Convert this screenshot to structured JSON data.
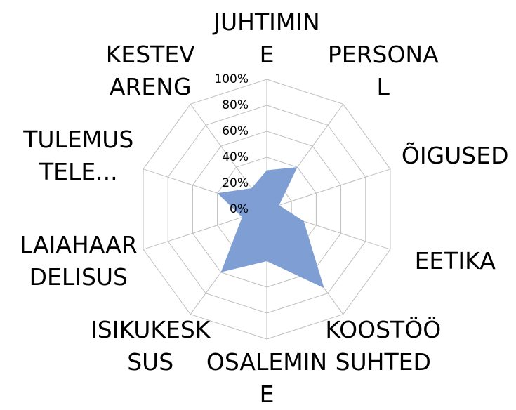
{
  "chart_data": {
    "type": "radar",
    "categories": [
      "JUHTIMIN\nE",
      "PERSONA\nL",
      "ÕIGUSED",
      "EETIKA",
      "KOOSTÖÖ\nSUHTED",
      "OSALEMIN\nE",
      "ISIKUKESK\nSUS",
      "LAIAHAAR\nDELISUS",
      "TULEMUS\nTELE...",
      "KESTEV\nARENG"
    ],
    "values": [
      30,
      40,
      10,
      30,
      75,
      40,
      60,
      20,
      40,
      20
    ],
    "color": "#7f9fd4",
    "ylim": [
      0,
      100
    ],
    "yticks": [
      {
        "value": 0,
        "label": "0%"
      },
      {
        "value": 20,
        "label": "20%"
      },
      {
        "value": 40,
        "label": "40%"
      },
      {
        "value": 60,
        "label": "60%"
      },
      {
        "value": 80,
        "label": "80%"
      },
      {
        "value": 100,
        "label": "100%"
      }
    ],
    "grid": true
  }
}
